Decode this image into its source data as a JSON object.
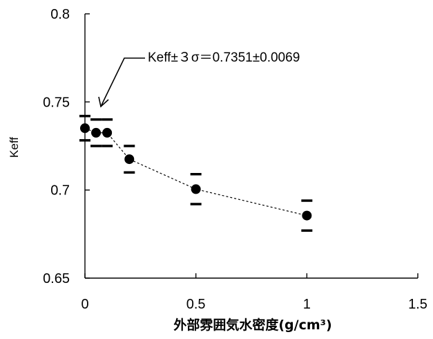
{
  "chart_data": {
    "type": "scatter",
    "xlabel": "外部雰囲気水密度(g/cm³)",
    "ylabel": "Keff",
    "xlim": [
      0,
      1.5
    ],
    "ylim": [
      0.65,
      0.8
    ],
    "xticks": [
      0,
      0.5,
      1,
      1.5
    ],
    "yticks": [
      0.65,
      0.7,
      0.75,
      0.8
    ],
    "xtick_labels": [
      "0",
      "0.5",
      "1",
      "1.5"
    ],
    "ytick_labels": [
      "0.65",
      "0.7",
      "0.75",
      "0.8"
    ],
    "grid": false,
    "connector_line": "dashed",
    "series": [
      {
        "x": [
          0,
          0.05,
          0.1,
          0.2,
          0.5,
          1.0
        ],
        "y": [
          0.7351,
          0.7325,
          0.7325,
          0.7175,
          0.7005,
          0.6855
        ],
        "err": [
          0.0069,
          0.0075,
          0.0075,
          0.0075,
          0.0085,
          0.0085
        ]
      }
    ],
    "annotation": {
      "text": "Keff±３σ＝0.7351±0.0069",
      "arrow_points_to": {
        "x": 0.07,
        "y": 0.7425
      }
    }
  }
}
